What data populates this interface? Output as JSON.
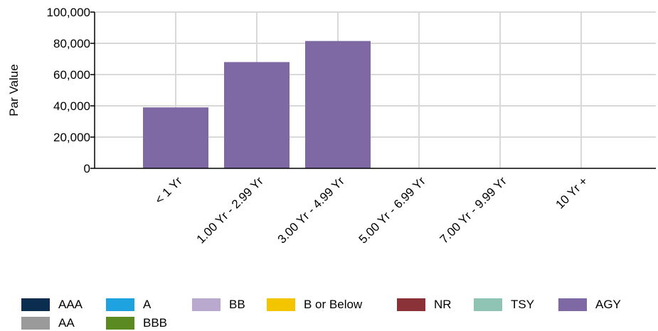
{
  "chart_data": {
    "type": "bar",
    "title": "",
    "xlabel": "",
    "ylabel": "Par Value",
    "ylim": [
      0,
      100000
    ],
    "y_ticks": [
      "0",
      "20,000",
      "40,000",
      "60,000",
      "80,000",
      "100,000"
    ],
    "y_tick_values": [
      0,
      20000,
      40000,
      60000,
      80000,
      100000
    ],
    "categories": [
      "< 1 Yr",
      "1.00 Yr - 2.99 Yr",
      "3.00 Yr - 4.99 Yr",
      "5.00 Yr - 6.99 Yr",
      "7.00 Yr - 9.99 Yr",
      "10 Yr +"
    ],
    "series": [
      {
        "name": "AAA",
        "color": "#0b2d4f",
        "values": [
          0,
          0,
          0,
          0,
          0,
          0
        ]
      },
      {
        "name": "AA",
        "color": "#9a9a9a",
        "values": [
          0,
          0,
          0,
          0,
          0,
          0
        ]
      },
      {
        "name": "A",
        "color": "#1ea2e0",
        "values": [
          0,
          0,
          0,
          0,
          0,
          0
        ]
      },
      {
        "name": "BBB",
        "color": "#5b8a22",
        "values": [
          0,
          0,
          0,
          0,
          0,
          0
        ]
      },
      {
        "name": "BB",
        "color": "#b9a9cf",
        "values": [
          0,
          0,
          0,
          0,
          0,
          0
        ]
      },
      {
        "name": "B or Below",
        "color": "#f2c500",
        "values": [
          0,
          0,
          0,
          0,
          0,
          0
        ]
      },
      {
        "name": "NR",
        "color": "#8b3238",
        "values": [
          0,
          0,
          0,
          0,
          0,
          0
        ]
      },
      {
        "name": "TSY",
        "color": "#8fc4b4",
        "values": [
          0,
          0,
          0,
          0,
          0,
          0
        ]
      },
      {
        "name": "AGY",
        "color": "#7f69a5",
        "values": [
          39000,
          68000,
          81500,
          0,
          0,
          0
        ]
      }
    ],
    "grid": true,
    "legend_position": "bottom",
    "colors": {
      "grid": "#d9d9d9",
      "axis": "#000000"
    }
  }
}
